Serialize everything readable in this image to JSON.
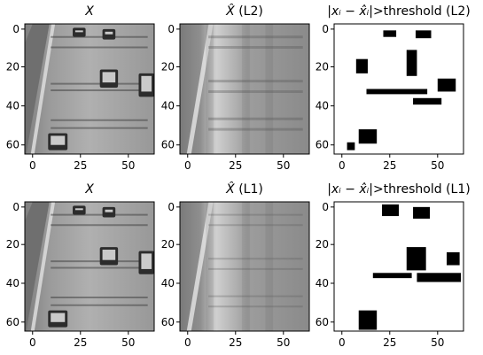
{
  "figure": {
    "colors": {
      "background": "#ffffff",
      "binary_fg": "#000000",
      "binary_bg": "#ffffff",
      "road": "#a9a9a9",
      "lane_line": "#d9d9d9"
    },
    "panels": [
      {
        "id": "x-l2",
        "title_prefix": "",
        "title_italic": "X",
        "title_suffix": "",
        "kind": "image",
        "variant": "original",
        "xticks": [
          "0",
          "25",
          "50"
        ],
        "yticks": [
          "0",
          "20",
          "40",
          "60"
        ]
      },
      {
        "id": "xhat-l2",
        "title_prefix": "",
        "title_italic": "X̂",
        "title_suffix": " (L2)",
        "kind": "image",
        "variant": "reconstruction-l2",
        "xticks": [
          "0",
          "25",
          "50"
        ],
        "yticks": [
          "0",
          "20",
          "40",
          "60"
        ]
      },
      {
        "id": "threshold-l2",
        "title_prefix": "|",
        "title_italic": "xᵢ − x̂ᵢ",
        "title_suffix": "|>threshold (L2)",
        "kind": "mask",
        "variant": "threshold-l2",
        "xticks": [
          "0",
          "25",
          "50"
        ],
        "yticks": [
          "0",
          "20",
          "40",
          "60"
        ]
      },
      {
        "id": "x-l1",
        "title_prefix": "",
        "title_italic": "X",
        "title_suffix": "",
        "kind": "image",
        "variant": "original",
        "xticks": [
          "0",
          "25",
          "50"
        ],
        "yticks": [
          "0",
          "20",
          "40",
          "60"
        ]
      },
      {
        "id": "xhat-l1",
        "title_prefix": "",
        "title_italic": "X̂",
        "title_suffix": " (L1)",
        "kind": "image",
        "variant": "reconstruction-l1",
        "xticks": [
          "0",
          "25",
          "50"
        ],
        "yticks": [
          "0",
          "20",
          "40",
          "60"
        ]
      },
      {
        "id": "threshold-l1",
        "title_prefix": "|",
        "title_italic": "xᵢ − x̂ᵢ",
        "title_suffix": "|>threshold (L1)",
        "kind": "mask",
        "variant": "threshold-l1",
        "xticks": [
          "0",
          "25",
          "50"
        ],
        "yticks": [
          "0",
          "20",
          "40",
          "60"
        ]
      }
    ]
  }
}
